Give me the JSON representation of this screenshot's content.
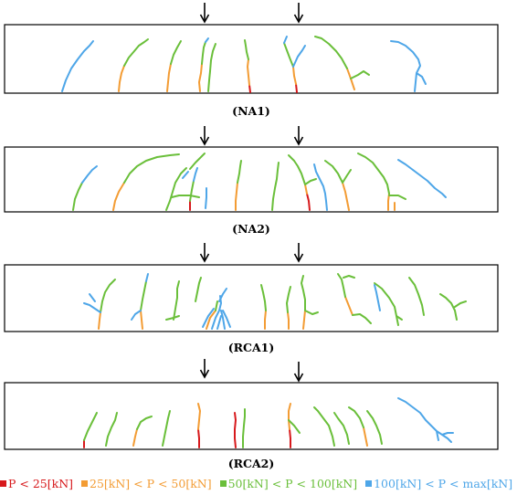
{
  "beams": [
    {
      "label": "(NA1)"
    },
    {
      "label": "(NA2)"
    },
    {
      "label": "(RCA1)"
    },
    {
      "label": "(RCA2)"
    }
  ],
  "legend": [
    {
      "text": "P < 25[kN]",
      "color": "#d7191c"
    },
    {
      "text": "25[kN] < P < 50[kN]",
      "color": "#f39c34"
    },
    {
      "text": "50[kN] < P < 100[kN]",
      "color": "#6abf3a"
    },
    {
      "text": "100[kN] < P < max[kN]",
      "color": "#4ea6e8"
    }
  ]
}
